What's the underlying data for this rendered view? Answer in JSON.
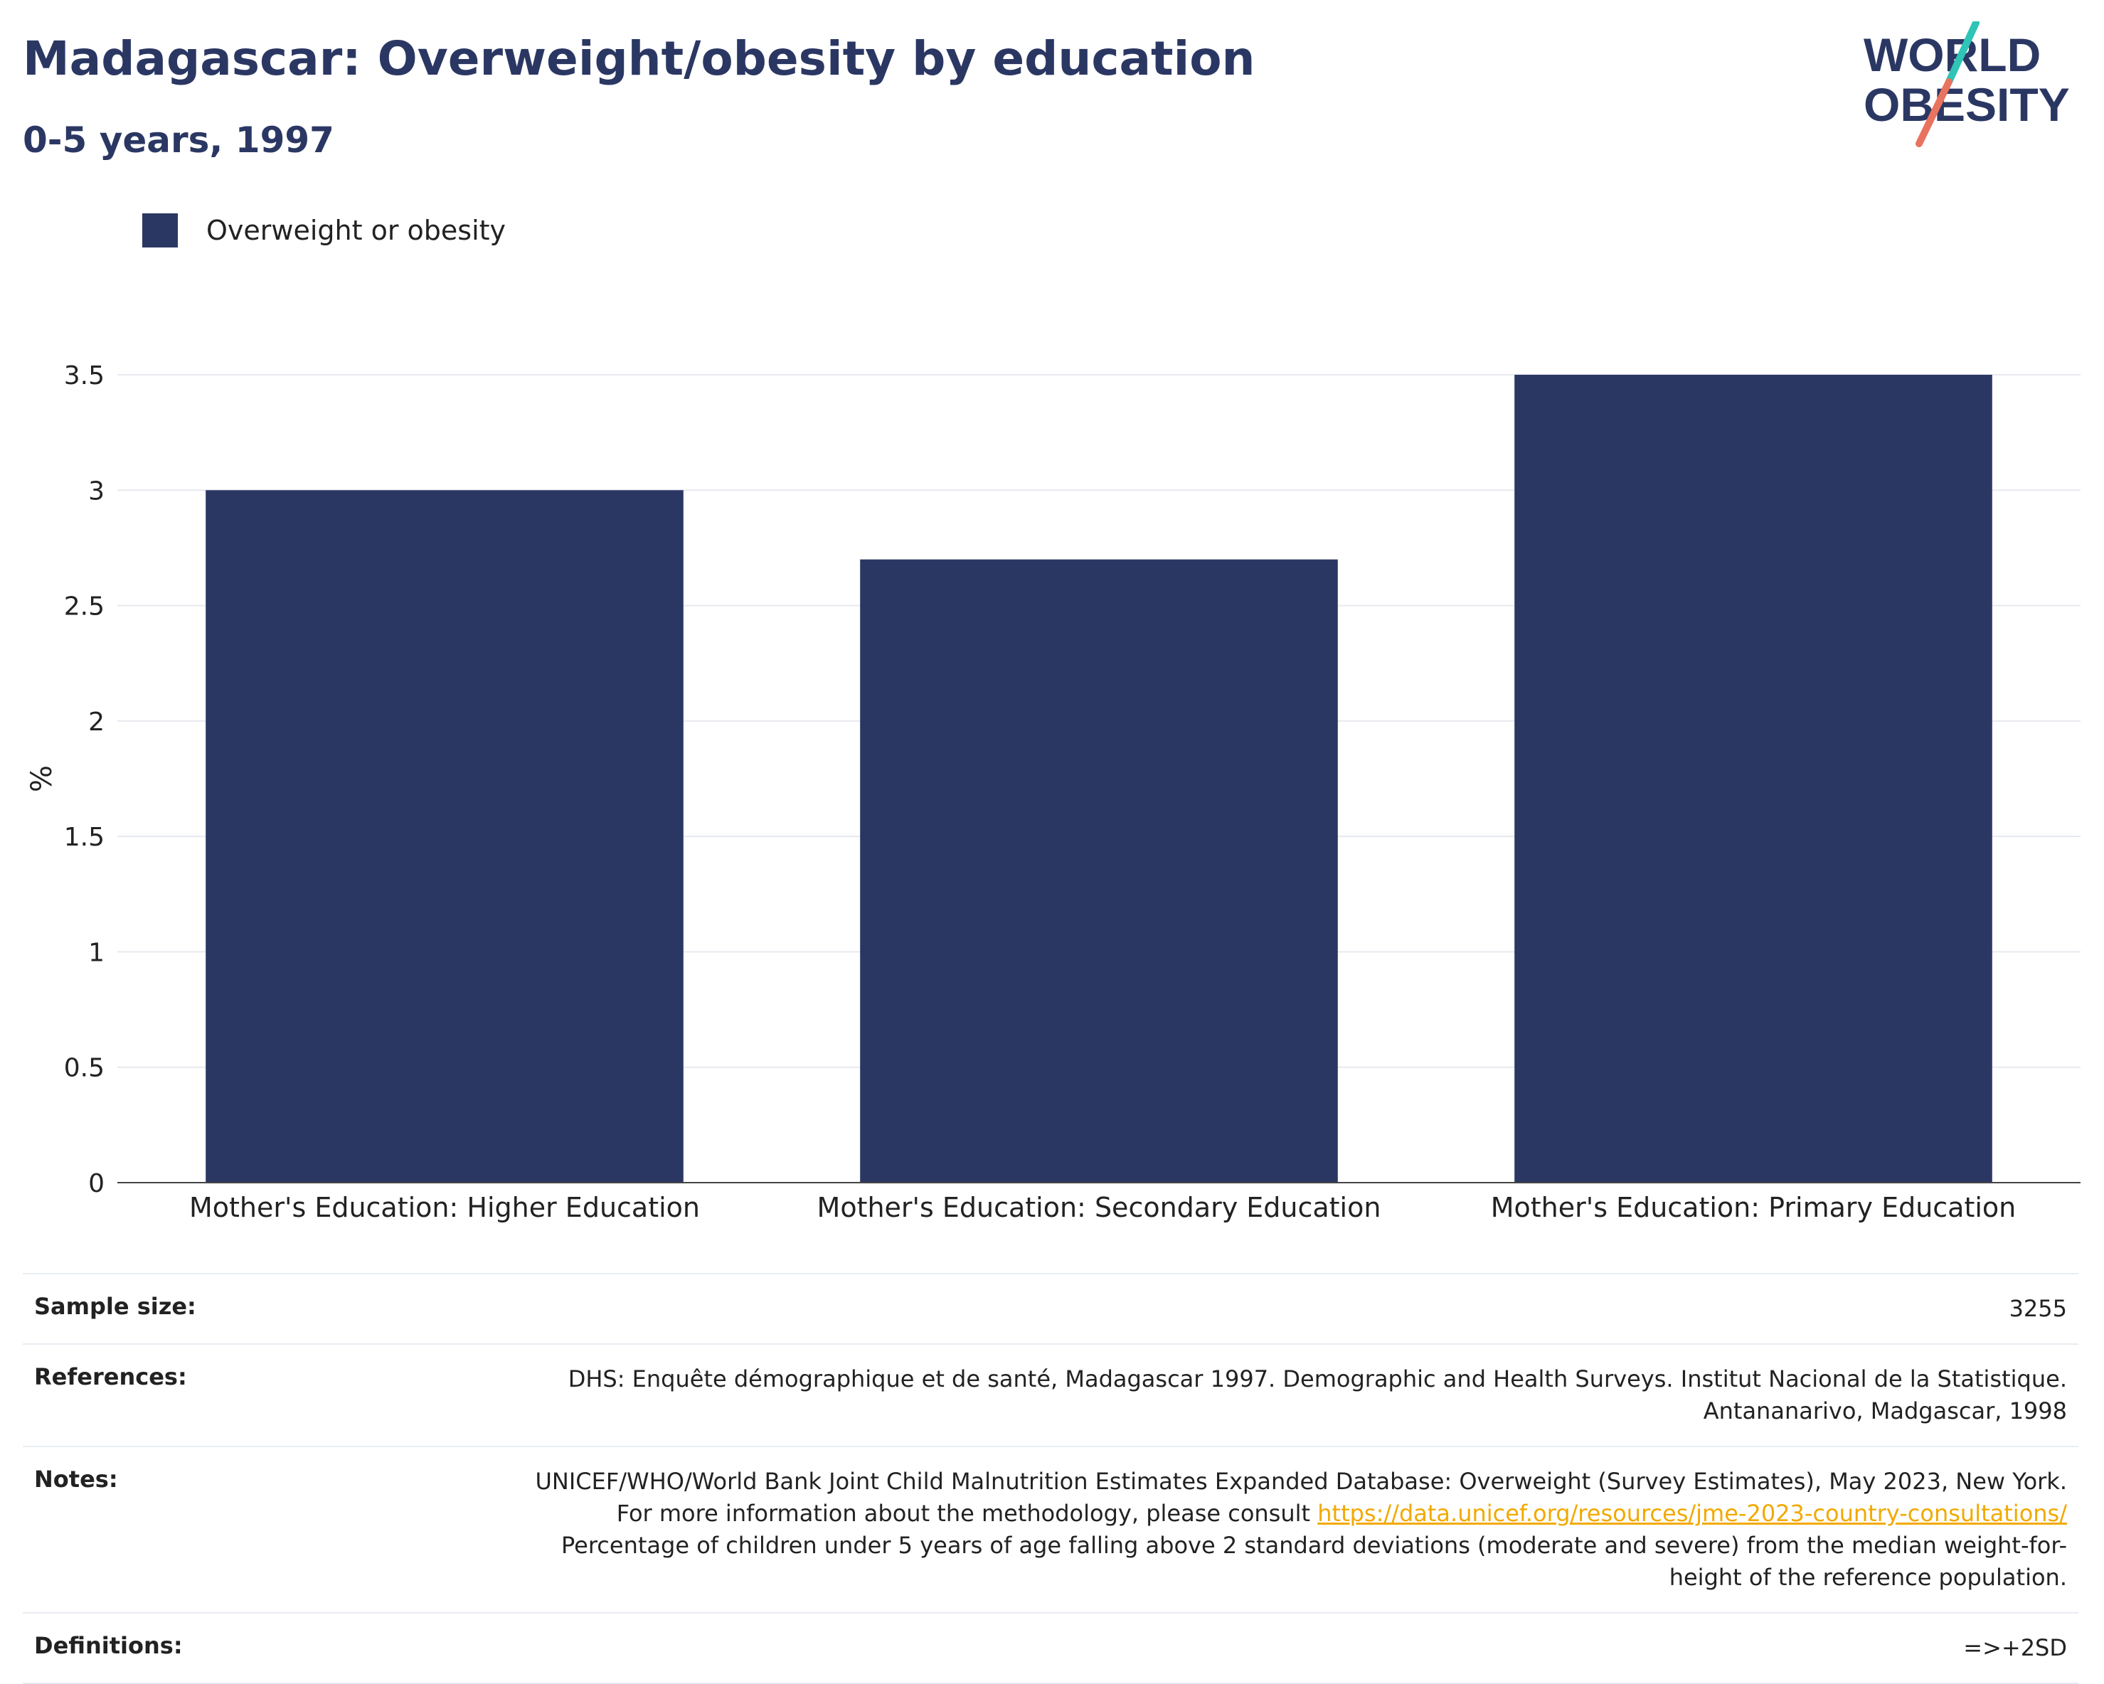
{
  "header": {
    "title": "Madagascar: Overweight/obesity by education",
    "subtitle": "0-5 years, 1997"
  },
  "logo": {
    "line1": "WORLD",
    "line2": "OBESITY",
    "accent_teal": "#2ec4b6",
    "accent_coral": "#e8735f",
    "text_color": "#2b3763"
  },
  "legend": {
    "label": "Overweight or obesity",
    "color": "#2b3763"
  },
  "chart_data": {
    "type": "bar",
    "categories": [
      "Mother's Education: Higher Education",
      "Mother's Education: Secondary Education",
      "Mother's Education: Primary Education"
    ],
    "series": [
      {
        "name": "Overweight or obesity",
        "values": [
          3.0,
          2.7,
          3.5
        ],
        "color": "#2b3763"
      }
    ],
    "ylabel": "%",
    "ylim": [
      0,
      3.5
    ],
    "yticks": [
      0,
      0.5,
      1,
      1.5,
      2,
      2.5,
      3,
      3.5
    ],
    "ytick_labels": [
      "0",
      "0.5",
      "1",
      "1.5",
      "2",
      "2.5",
      "3",
      "3.5"
    ],
    "grid": true,
    "legend_position": "top-left"
  },
  "meta": {
    "sample_size": {
      "label": "Sample size:",
      "value": "3255"
    },
    "references": {
      "label": "References:",
      "value": "DHS: Enquête démographique et de santé, Madagascar 1997. Demographic and Health Surveys. Institut Nacional de la Statistique. Antananarivo, Madgascar, 1998"
    },
    "notes": {
      "label": "Notes:",
      "text_before": "UNICEF/WHO/World Bank Joint Child Malnutrition Estimates Expanded Database: Overweight (Survey Estimates), May 2023, New York. For more information about the methodology, please consult ",
      "link": "https://data.unicef.org/resources/jme-2023-country-consultations/",
      "text_after": " Percentage of children under 5 years of age falling above 2 standard deviations (moderate and severe) from the median weight-for-height of the reference population."
    },
    "definitions": {
      "label": "Definitions:",
      "value": "=>+2SD"
    }
  }
}
